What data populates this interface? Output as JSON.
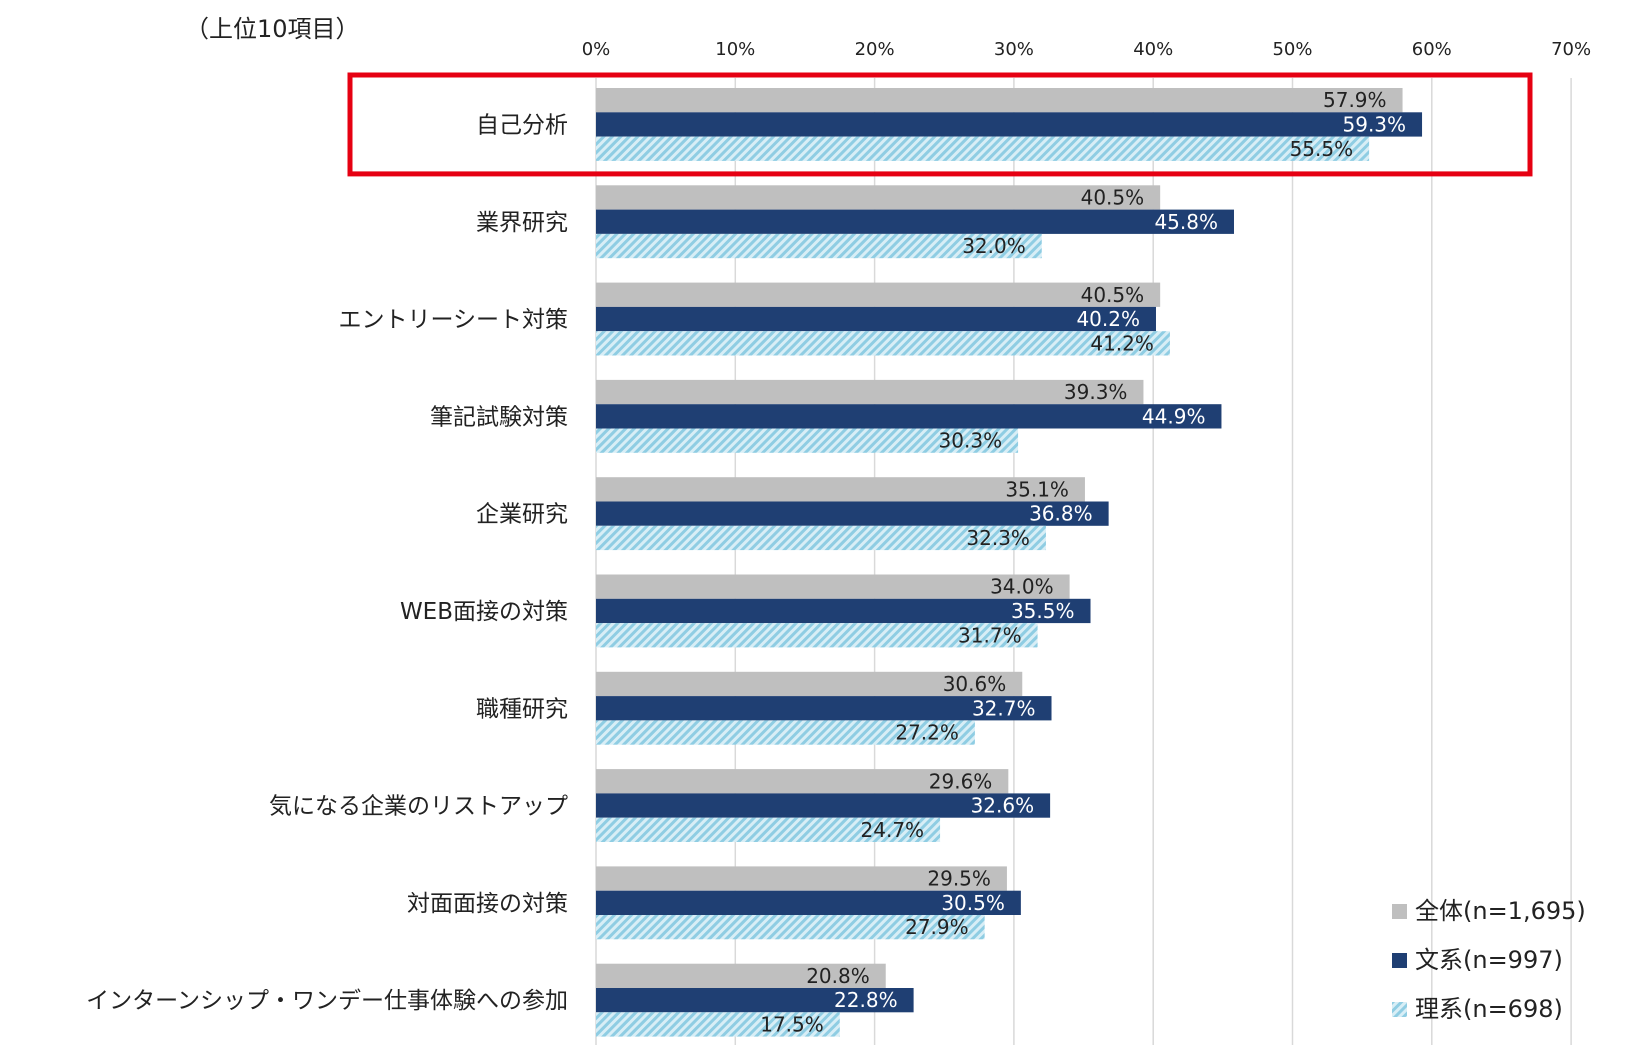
{
  "chart_data": {
    "type": "bar",
    "orientation": "horizontal",
    "subtitle": "（上位10項目）",
    "xlim": [
      0,
      70
    ],
    "x_ticks": [
      0,
      10,
      20,
      30,
      40,
      50,
      60,
      70
    ],
    "x_tick_labels": [
      "0%",
      "10%",
      "20%",
      "30%",
      "40%",
      "50%",
      "60%",
      "70%"
    ],
    "grid": true,
    "legend_position": "bottom-right",
    "categories": [
      "自己分析",
      "業界研究",
      "エントリーシート対策",
      "筆記試験対策",
      "企業研究",
      "WEB面接の対策",
      "職種研究",
      "気になる企業のリストアップ",
      "対面面接の対策",
      "インターンシップ・ワンデー仕事体験への参加"
    ],
    "series": [
      {
        "name": "全体(n=1,695)",
        "color": "#bfbfbf",
        "pattern": "solid",
        "label_color": "#222222",
        "values": [
          57.9,
          40.5,
          40.5,
          39.3,
          35.1,
          34.0,
          30.6,
          29.6,
          29.5,
          20.8
        ],
        "value_labels": [
          "57.9%",
          "40.5%",
          "40.5%",
          "39.3%",
          "35.1%",
          "34.0%",
          "30.6%",
          "29.6%",
          "29.5%",
          "20.8%"
        ]
      },
      {
        "name": "文系(n=997)",
        "color": "#1f3f73",
        "pattern": "solid",
        "label_color": "#ffffff",
        "values": [
          59.3,
          45.8,
          40.2,
          44.9,
          36.8,
          35.5,
          32.7,
          32.6,
          30.5,
          22.8
        ],
        "value_labels": [
          "59.3%",
          "45.8%",
          "40.2%",
          "44.9%",
          "36.8%",
          "35.5%",
          "32.7%",
          "32.6%",
          "30.5%",
          "22.8%"
        ]
      },
      {
        "name": "理系(n=698)",
        "color": "#9fd3e6",
        "pattern": "diagonal-hatch",
        "label_color": "#222222",
        "values": [
          55.5,
          32.0,
          41.2,
          30.3,
          32.3,
          31.7,
          27.2,
          24.7,
          27.9,
          17.5
        ],
        "value_labels": [
          "55.5%",
          "32.0%",
          "41.2%",
          "30.3%",
          "32.3%",
          "31.7%",
          "27.2%",
          "24.7%",
          "27.9%",
          "17.5%"
        ]
      }
    ],
    "highlight": {
      "category_index": 0,
      "color": "#e60012"
    }
  }
}
